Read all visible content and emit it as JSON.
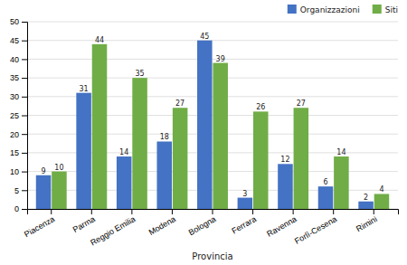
{
  "chart_data": {
    "type": "bar",
    "xlabel": "Provincia",
    "categories": [
      "Piacenza",
      "Parma",
      "Reggio Emilia",
      "Modena",
      "Bologna",
      "Ferrara",
      "Ravenna",
      "Forlì-Cesena",
      "Rimini"
    ],
    "series": [
      {
        "name": "Organizzazioni",
        "color": "#4472C4",
        "values": [
          9,
          31,
          14,
          18,
          45,
          3,
          12,
          6,
          2
        ]
      },
      {
        "name": "Siti",
        "color": "#70AD47",
        "values": [
          10,
          44,
          35,
          27,
          39,
          26,
          27,
          14,
          4
        ]
      }
    ],
    "ylim": [
      0,
      50
    ],
    "yticks": [
      0,
      5,
      10,
      15,
      20,
      25,
      30,
      35,
      40,
      45,
      50
    ],
    "grid": true,
    "legend": "upper right",
    "data_labels": true
  }
}
